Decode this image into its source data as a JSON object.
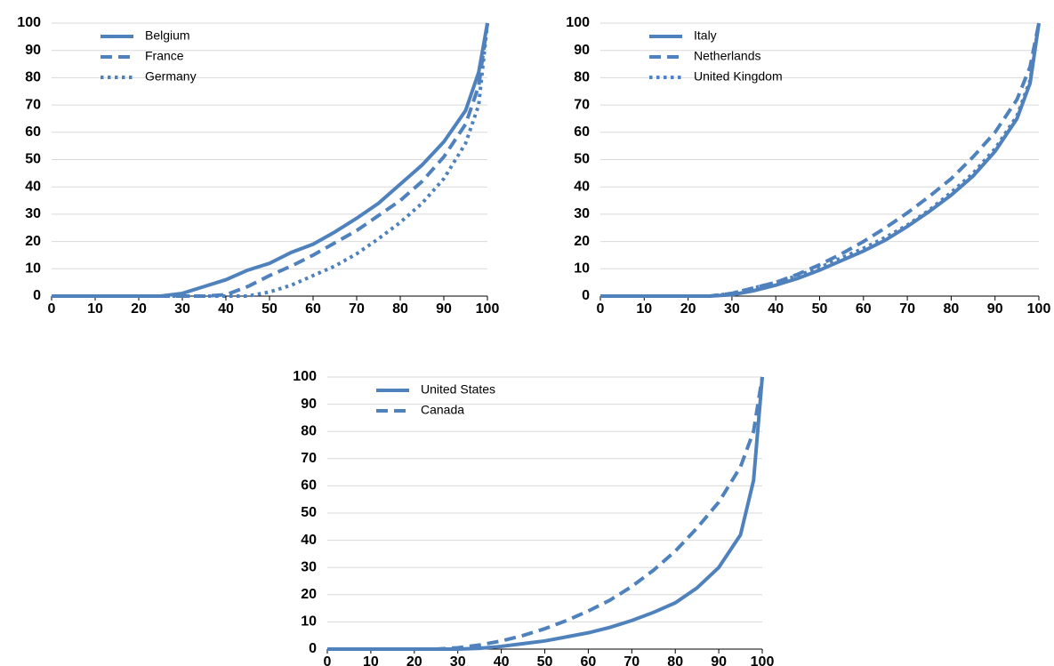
{
  "chart_data": [
    {
      "type": "line",
      "legend": "upper left",
      "grid": true,
      "x": [
        0,
        5,
        10,
        15,
        20,
        25,
        30,
        35,
        40,
        45,
        50,
        55,
        60,
        65,
        70,
        75,
        80,
        85,
        90,
        95,
        98,
        100
      ],
      "xlim": [
        0,
        100
      ],
      "ylim": [
        0,
        100
      ],
      "xticks": [
        0,
        10,
        20,
        30,
        40,
        50,
        60,
        70,
        80,
        90,
        100
      ],
      "yticks": [
        0,
        10,
        20,
        30,
        40,
        50,
        60,
        70,
        80,
        90,
        100
      ],
      "series": [
        {
          "name": "Belgium",
          "color": "#4f81bd",
          "style": "solid",
          "values": [
            0,
            0,
            0,
            0,
            0,
            0,
            1,
            3.5,
            6,
            9.5,
            12,
            16,
            19,
            23.5,
            28.5,
            34,
            41,
            48,
            56.5,
            68,
            82,
            100
          ]
        },
        {
          "name": "France",
          "color": "#4f81bd",
          "style": "dashed",
          "values": [
            0,
            0,
            0,
            0,
            0,
            0,
            0,
            0,
            0.5,
            3.5,
            7.5,
            11,
            15,
            19.5,
            24,
            29.5,
            35,
            42,
            51,
            63,
            77,
            100
          ]
        },
        {
          "name": "Germany",
          "color": "#4f81bd",
          "style": "dotted",
          "values": [
            0,
            0,
            0,
            0,
            0,
            0,
            0,
            0,
            0,
            0,
            1.5,
            4,
            7.5,
            11,
            15.5,
            21,
            27,
            34,
            43,
            56,
            70,
            100
          ]
        }
      ]
    },
    {
      "type": "line",
      "legend": "upper left",
      "grid": true,
      "x": [
        0,
        5,
        10,
        15,
        20,
        25,
        30,
        35,
        40,
        45,
        50,
        55,
        60,
        65,
        70,
        75,
        80,
        85,
        90,
        95,
        98,
        100
      ],
      "xlim": [
        0,
        100
      ],
      "ylim": [
        0,
        100
      ],
      "xticks": [
        0,
        10,
        20,
        30,
        40,
        50,
        60,
        70,
        80,
        90,
        100
      ],
      "yticks": [
        0,
        10,
        20,
        30,
        40,
        50,
        60,
        70,
        80,
        90,
        100
      ],
      "series": [
        {
          "name": "Italy",
          "color": "#4f81bd",
          "style": "solid",
          "values": [
            0,
            0,
            0,
            0,
            0,
            0,
            0.5,
            2,
            4,
            6.5,
            9.5,
            13,
            16.5,
            20.5,
            25.5,
            31,
            37,
            44,
            53,
            65,
            78,
            100
          ]
        },
        {
          "name": "Netherlands",
          "color": "#4f81bd",
          "style": "dashed",
          "values": [
            0,
            0,
            0,
            0,
            0,
            0,
            1,
            3,
            5,
            8,
            11.5,
            15.5,
            20,
            25,
            30.5,
            36.5,
            43,
            51,
            60,
            72,
            84,
            100
          ]
        },
        {
          "name": "United Kingdom",
          "color": "#4f81bd",
          "style": "dotted",
          "values": [
            0,
            0,
            0,
            0,
            0,
            0,
            1,
            3,
            5,
            7.5,
            10.5,
            14,
            17.5,
            21.5,
            26,
            31.5,
            38,
            45,
            54,
            66,
            79,
            100
          ]
        }
      ]
    },
    {
      "type": "line",
      "legend": "upper left",
      "grid": true,
      "x": [
        0,
        5,
        10,
        15,
        20,
        25,
        30,
        35,
        40,
        45,
        50,
        55,
        60,
        65,
        70,
        75,
        80,
        85,
        90,
        95,
        98,
        100
      ],
      "xlim": [
        0,
        100
      ],
      "ylim": [
        0,
        100
      ],
      "xticks": [
        0,
        10,
        20,
        30,
        40,
        50,
        60,
        70,
        80,
        90,
        100
      ],
      "yticks": [
        0,
        10,
        20,
        30,
        40,
        50,
        60,
        70,
        80,
        90,
        100
      ],
      "series": [
        {
          "name": "United States",
          "color": "#4f81bd",
          "style": "solid",
          "values": [
            0,
            0,
            0,
            0,
            0,
            0,
            0,
            0.3,
            1,
            2,
            3,
            4.5,
            6,
            8,
            10.5,
            13.5,
            17,
            22.5,
            30,
            42,
            62,
            100
          ]
        },
        {
          "name": "Canada",
          "color": "#4f81bd",
          "style": "dashed",
          "values": [
            0,
            0,
            0,
            0,
            0,
            0,
            0.5,
            1.5,
            3,
            5,
            7.5,
            10.5,
            14,
            18,
            23,
            29,
            36,
            44.5,
            54,
            67,
            80,
            100
          ]
        }
      ]
    }
  ]
}
